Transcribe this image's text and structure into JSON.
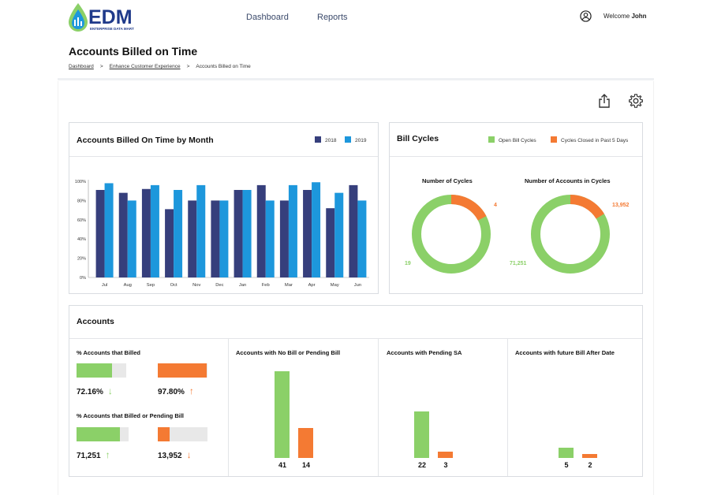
{
  "colors": {
    "navy": "#363f7c",
    "blue": "#1d97dc",
    "green": "#8bd068",
    "orange": "#f47a33",
    "track": "#e8e8e8"
  },
  "header": {
    "logo_text": "EDM",
    "logo_sub": "ENTERPRISE DATA MART",
    "nav": [
      {
        "label": "Dashboard"
      },
      {
        "label": "Reports"
      }
    ],
    "user_icon": "user-circle-icon",
    "welcome_prefix": "Welcome",
    "user_name": "John"
  },
  "page": {
    "title": "Accounts Billed on Time",
    "breadcrumb": [
      "Dashboard",
      "Enhance Customer Experience",
      "Accounts Billed on Time"
    ],
    "breadcrumb_sep": ">"
  },
  "toolbar": {
    "share_icon": "share-icon",
    "settings_icon": "gear-icon"
  },
  "billed_chart": {
    "title": "Accounts Billed On Time by Month",
    "chart_data": {
      "type": "bar",
      "categories": [
        "Jul",
        "Aug",
        "Sep",
        "Oct",
        "Nov",
        "Dec",
        "Jan",
        "Feb",
        "Mar",
        "Apr",
        "May",
        "Jun"
      ],
      "series": [
        {
          "name": "2018",
          "values": [
            91,
            88,
            92,
            71,
            80,
            80,
            91,
            96,
            80,
            91,
            72,
            96
          ]
        },
        {
          "name": "2019",
          "values": [
            98,
            80,
            96,
            91,
            96,
            80,
            91,
            80,
            96,
            99,
            88,
            80
          ]
        }
      ],
      "yticks": [
        "0%",
        "20%",
        "40%",
        "60%",
        "80%",
        "100%"
      ],
      "ylim": [
        0,
        100
      ],
      "legend": "top-right"
    }
  },
  "bill_cycles": {
    "title": "Bill Cycles",
    "legend": [
      "Open Bill Cycles",
      "Cycles Closed in Past 5 Days"
    ],
    "donuts": [
      {
        "title": "Number of Cycles",
        "open": 19,
        "closed": 4,
        "open_label": "19",
        "closed_label": "4"
      },
      {
        "title": "Number of Accounts in Cycles",
        "open": 71251,
        "closed": 13952,
        "open_label": "71,251",
        "closed_label": "13,952"
      }
    ]
  },
  "accounts": {
    "title": "Accounts",
    "billed": {
      "title": "% Accounts that Billed",
      "green_value": "72.16%",
      "green_pct": 72.16,
      "orange_value": "97.80%",
      "orange_pct": 97.8
    },
    "pending": {
      "title": "% Accounts that Billed or Pending Bill",
      "green_value": "71,251",
      "green_pct": 84,
      "orange_value": "13,952",
      "orange_pct": 24
    },
    "columns": [
      {
        "title": "Accounts with No Bill or Pending Bill",
        "green": 41,
        "orange": 14
      },
      {
        "title": "Accounts with Pending SA",
        "green": 22,
        "orange": 3
      },
      {
        "title": "Accounts with future Bill After Date",
        "green": 5,
        "orange": 2
      }
    ]
  }
}
